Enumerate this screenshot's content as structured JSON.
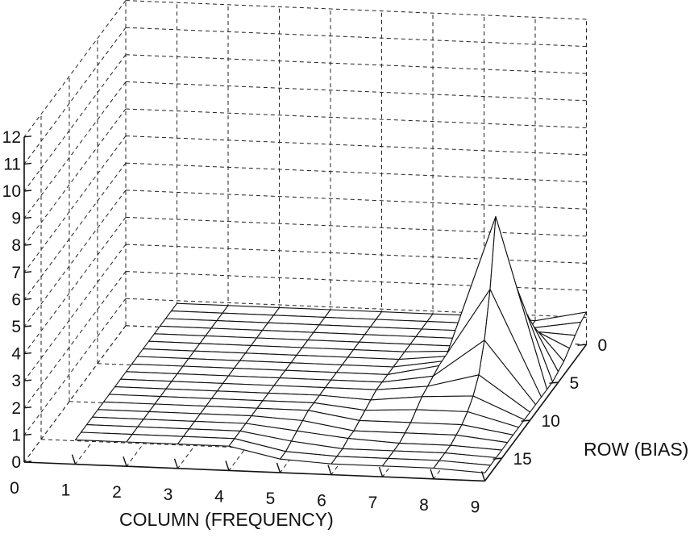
{
  "chart_data": {
    "type": "surface3d",
    "title": "",
    "xlabel": "COLUMN (FREQUENCY)",
    "ylabel": "ROW (BIAS)",
    "zlabel": "",
    "x_ticks": [
      "0",
      "1",
      "2",
      "3",
      "4",
      "5",
      "6",
      "7",
      "8",
      "9"
    ],
    "y_ticks": [
      "0",
      "5",
      "10",
      "15"
    ],
    "z_ticks": [
      "0",
      "1",
      "2",
      "3",
      "4",
      "5",
      "6",
      "7",
      "8",
      "9",
      "10",
      "11",
      "12"
    ],
    "xlim": [
      0,
      9
    ],
    "ylim": [
      0,
      18
    ],
    "zlim": [
      0,
      12
    ],
    "grid": true,
    "columns": [
      1,
      2,
      3,
      4,
      5,
      6,
      7,
      8,
      9
    ],
    "rows": [
      0,
      1,
      2,
      3,
      4,
      5,
      6,
      7,
      8,
      9,
      10,
      11,
      12,
      13,
      14,
      15,
      16,
      17,
      18
    ],
    "z": [
      [
        0.9,
        0.9,
        0.9,
        0.9,
        0.9,
        0.9,
        0.9,
        0.8,
        1.2
      ],
      [
        0.9,
        0.9,
        0.9,
        0.9,
        0.9,
        0.9,
        0.9,
        0.8,
        1.1
      ],
      [
        0.9,
        0.9,
        0.9,
        0.9,
        0.9,
        0.9,
        0.9,
        1.0,
        0.9
      ],
      [
        0.9,
        0.9,
        0.9,
        0.9,
        0.9,
        0.9,
        0.9,
        1.6,
        0.7
      ],
      [
        0.9,
        0.9,
        0.9,
        0.9,
        0.9,
        0.9,
        0.9,
        2.6,
        0.5
      ],
      [
        0.9,
        0.9,
        0.9,
        0.9,
        0.9,
        0.9,
        1.0,
        3.8,
        0.4
      ],
      [
        0.9,
        0.9,
        0.9,
        0.9,
        0.9,
        0.9,
        1.1,
        5.2,
        0.3
      ],
      [
        0.9,
        0.9,
        0.9,
        0.9,
        0.9,
        0.9,
        1.2,
        6.6,
        0.3
      ],
      [
        0.9,
        0.9,
        0.9,
        0.9,
        0.9,
        0.9,
        1.3,
        4.2,
        0.3
      ],
      [
        0.9,
        0.9,
        0.9,
        0.9,
        0.9,
        0.9,
        1.2,
        2.6,
        0.3
      ],
      [
        0.9,
        0.9,
        0.9,
        0.9,
        0.9,
        0.9,
        1.1,
        1.6,
        0.3
      ],
      [
        0.9,
        0.9,
        0.9,
        0.9,
        0.9,
        0.8,
        1.0,
        1.1,
        0.3
      ],
      [
        0.9,
        0.9,
        0.9,
        0.9,
        0.9,
        0.7,
        0.8,
        0.8,
        0.3
      ],
      [
        0.9,
        0.9,
        0.9,
        0.9,
        0.9,
        0.6,
        0.6,
        0.6,
        0.3
      ],
      [
        0.9,
        0.9,
        0.9,
        0.9,
        0.8,
        0.5,
        0.5,
        0.5,
        0.3
      ],
      [
        0.9,
        0.9,
        0.9,
        0.9,
        0.7,
        0.5,
        0.4,
        0.4,
        0.3
      ],
      [
        0.9,
        0.9,
        0.9,
        0.9,
        0.6,
        0.4,
        0.4,
        0.4,
        0.3
      ],
      [
        0.9,
        0.9,
        0.9,
        0.9,
        0.5,
        0.4,
        0.4,
        0.4,
        0.3
      ],
      [
        0.9,
        0.9,
        0.9,
        0.9,
        0.5,
        0.4,
        0.4,
        0.4,
        0.3
      ]
    ]
  }
}
